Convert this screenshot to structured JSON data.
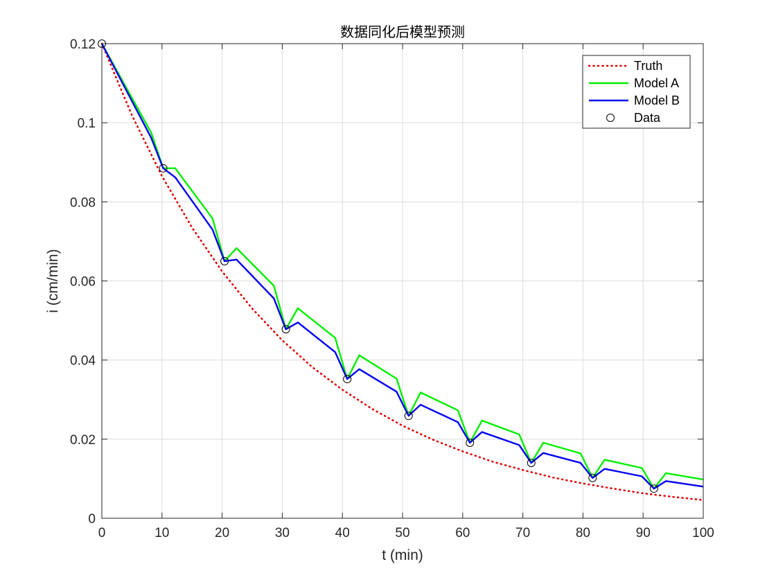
{
  "chart_data": {
    "type": "line",
    "title": "数据同化后模型预测",
    "xlabel": "t (min)",
    "ylabel": "i (cm/min)",
    "xlim": [
      0,
      100
    ],
    "ylim": [
      0,
      0.12
    ],
    "xticks": [
      0,
      10,
      20,
      30,
      40,
      50,
      60,
      70,
      80,
      90,
      100
    ],
    "yticks": [
      0,
      0.02,
      0.04,
      0.06,
      0.08,
      0.1,
      0.12
    ],
    "xtick_labels": [
      "0",
      "10",
      "20",
      "30",
      "40",
      "50",
      "60",
      "70",
      "80",
      "90",
      "100"
    ],
    "ytick_labels": [
      "0",
      "0.02",
      "0.04",
      "0.06",
      "0.08",
      "0.1",
      "0.12"
    ],
    "grid": true,
    "legend_position": "top-right",
    "series": [
      {
        "name": "Truth",
        "style": "dotted",
        "color": "#e00000",
        "x": [
          0,
          5,
          10,
          15,
          20,
          25,
          30,
          35,
          40,
          45,
          50,
          55,
          60,
          65,
          70,
          75,
          80,
          85,
          90,
          95,
          100
        ],
        "y": [
          0.12,
          0.1019,
          0.0865,
          0.0735,
          0.0624,
          0.053,
          0.045,
          0.0382,
          0.0325,
          0.0276,
          0.0234,
          0.0199,
          0.0169,
          0.0143,
          0.0122,
          0.0103,
          0.0088,
          0.0075,
          0.0063,
          0.0054,
          0.0046
        ]
      },
      {
        "name": "Model A",
        "style": "solid",
        "color": "#00ee00",
        "x": [
          0,
          8.2,
          10.2,
          12.2,
          18.4,
          20.4,
          22.4,
          28.6,
          30.6,
          32.6,
          38.8,
          40.8,
          42.8,
          49.0,
          51.0,
          53.0,
          59.2,
          61.2,
          63.2,
          69.4,
          71.4,
          73.4,
          79.6,
          81.6,
          83.6,
          89.8,
          91.8,
          93.8,
          100
        ],
        "y": [
          0.12,
          0.0975,
          0.0885,
          0.0885,
          0.0758,
          0.065,
          0.0683,
          0.0588,
          0.0478,
          0.0531,
          0.0456,
          0.0352,
          0.0412,
          0.0353,
          0.0259,
          0.0318,
          0.0273,
          0.0191,
          0.0247,
          0.0212,
          0.014,
          0.0191,
          0.0164,
          0.0102,
          0.0148,
          0.0127,
          0.0075,
          0.0114,
          0.0098
        ]
      },
      {
        "name": "Model B",
        "style": "solid",
        "color": "#0000ee",
        "x": [
          0,
          8.2,
          10.2,
          12.2,
          18.4,
          20.4,
          22.4,
          28.6,
          30.6,
          32.6,
          38.8,
          40.8,
          42.8,
          49.0,
          51.0,
          53.0,
          59.2,
          61.2,
          63.2,
          69.4,
          71.4,
          73.4,
          79.6,
          81.6,
          83.6,
          89.8,
          91.8,
          93.8,
          100
        ],
        "y": [
          0.12,
          0.0962,
          0.0885,
          0.0862,
          0.073,
          0.065,
          0.0654,
          0.0556,
          0.0478,
          0.0495,
          0.042,
          0.0352,
          0.0377,
          0.032,
          0.0259,
          0.0287,
          0.0243,
          0.0191,
          0.0218,
          0.0185,
          0.014,
          0.0165,
          0.014,
          0.0102,
          0.0125,
          0.0106,
          0.0075,
          0.0094,
          0.008
        ]
      },
      {
        "name": "Data",
        "style": "marker",
        "color": "#000000",
        "x": [
          0,
          10.2,
          20.4,
          30.6,
          40.8,
          51.0,
          61.2,
          71.4,
          81.6,
          91.8
        ],
        "y": [
          0.12,
          0.0885,
          0.065,
          0.0478,
          0.0352,
          0.0259,
          0.0191,
          0.014,
          0.0102,
          0.0075
        ]
      }
    ]
  }
}
